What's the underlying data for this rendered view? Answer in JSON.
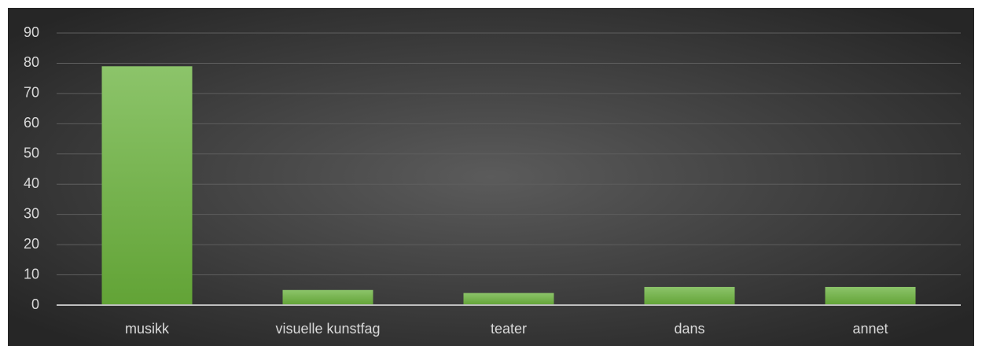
{
  "chart_data": {
    "type": "bar",
    "categories": [
      "musikk",
      "visuelle kunstfag",
      "teater",
      "dans",
      "annet"
    ],
    "values": [
      79,
      5,
      4,
      6,
      6
    ],
    "color": "#70ad47",
    "ylim": [
      0,
      90
    ],
    "yticks": [
      0,
      10,
      20,
      30,
      40,
      50,
      60,
      70,
      80,
      90
    ],
    "grid": true
  }
}
